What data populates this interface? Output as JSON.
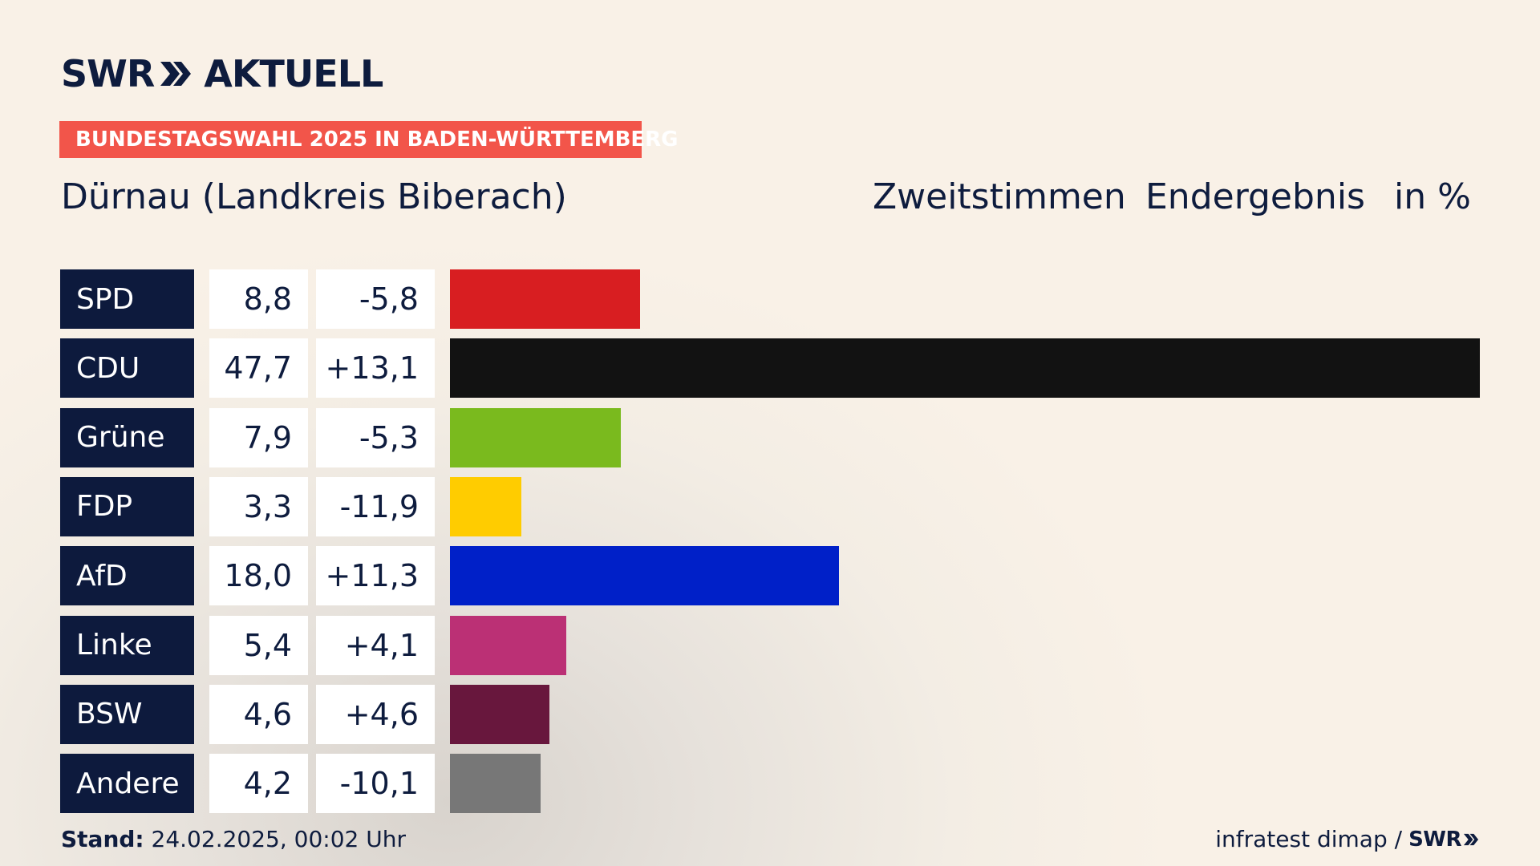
{
  "brand": {
    "name_left": "SWR",
    "name_right": "AKTUELL",
    "chevron_icon": "double-chevron-right-icon",
    "color": "#0e1c3e"
  },
  "banner": {
    "text": "BUNDESTAGSWAHL 2025 IN BADEN-WÜRTTEMBERG",
    "color": "#f2554a"
  },
  "header": {
    "region": "Dürnau (Landkreis Biberach)",
    "vote_type": "Zweitstimmen",
    "status": "Endergebnis",
    "unit": "in %"
  },
  "chart_data": {
    "type": "bar",
    "orientation": "horizontal",
    "unit": "%",
    "categories": [
      "SPD",
      "CDU",
      "Grüne",
      "FDP",
      "AfD",
      "Linke",
      "BSW",
      "Andere"
    ],
    "values": [
      8.8,
      47.7,
      7.9,
      3.3,
      18.0,
      5.4,
      4.6,
      4.2
    ],
    "value_labels": [
      "8,8",
      "47,7",
      "7,9",
      "3,3",
      "18,0",
      "5,4",
      "4,6",
      "4,2"
    ],
    "diff_values": [
      -5.8,
      13.1,
      -5.3,
      -11.9,
      11.3,
      4.1,
      4.6,
      -10.1
    ],
    "diff_labels": [
      "-5,8",
      "+13,1",
      "-5,3",
      "-11,9",
      "+11,3",
      "+4,1",
      "+4,6",
      "-10,1"
    ],
    "colors": [
      "#d81e21",
      "#121212",
      "#7aba1e",
      "#ffcc00",
      "#0020c8",
      "#bb3075",
      "#68173d",
      "#777777"
    ],
    "xlim": [
      0,
      47.7
    ]
  },
  "footer": {
    "stand_label": "Stand:",
    "stand_value": "24.02.2025, 00:02 Uhr",
    "source": "infratest dimap /",
    "source_logo": "SWR"
  }
}
